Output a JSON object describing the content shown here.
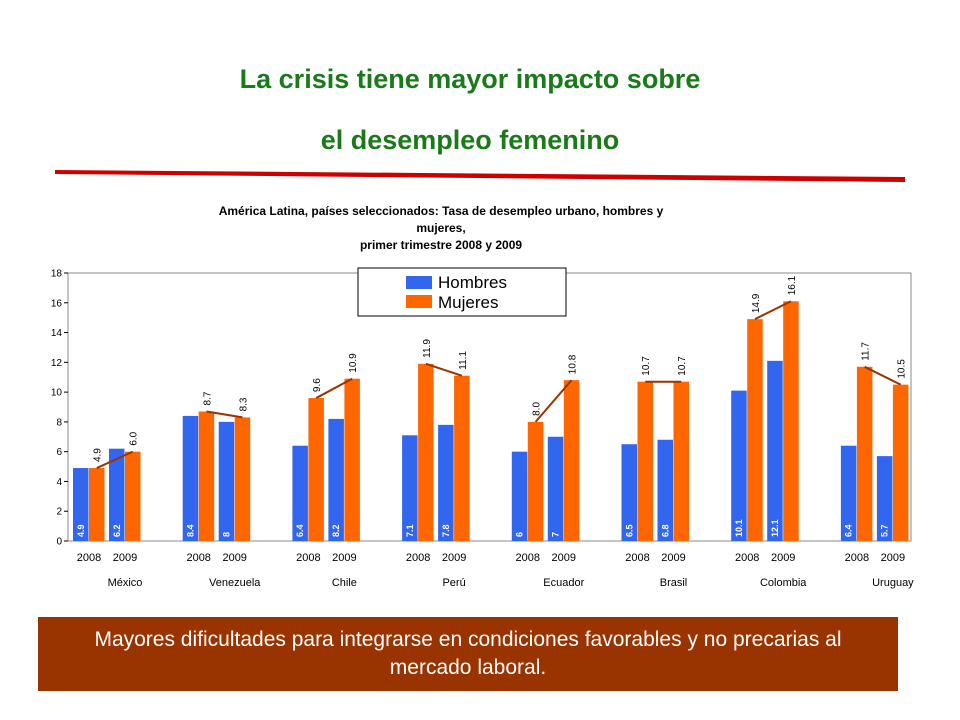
{
  "slide": {
    "title_line1": "La crisis tiene mayor impacto sobre",
    "title_line2": "el desempleo femenino",
    "caption": "Mayores dificultades para integrarse en condiciones favorables y no precarias al mercado laboral.",
    "title_color": "#1a7a1a",
    "divider_color": "#cc0000",
    "caption_bg": "#993300"
  },
  "chart_data": {
    "type": "bar",
    "title_lines": [
      "América Latina, países seleccionados: Tasa de desempleo urbano, hombres y",
      "mujeres,",
      "primer trimestre 2008 y 2009"
    ],
    "countries": [
      "México",
      "Venezuela",
      "Chile",
      "Perú",
      "Ecuador",
      "Brasil",
      "Colombia",
      "Uruguay"
    ],
    "years": [
      "2008",
      "2009"
    ],
    "series": [
      {
        "name": "Hombres",
        "color": "#3366ee",
        "values": [
          [
            4.9,
            6.2
          ],
          [
            8.4,
            8.0
          ],
          [
            6.4,
            8.2
          ],
          [
            7.1,
            7.8
          ],
          [
            6.0,
            7.0
          ],
          [
            6.5,
            6.8
          ],
          [
            10.1,
            12.1
          ],
          [
            6.4,
            5.7
          ]
        ],
        "labels": [
          [
            "4.9",
            "6.2"
          ],
          [
            "8.4",
            "8"
          ],
          [
            "6.4",
            "8.2"
          ],
          [
            "7.1",
            "7.8"
          ],
          [
            "6",
            "7"
          ],
          [
            "6.5",
            "6.8"
          ],
          [
            "10.1",
            "12.1"
          ],
          [
            "6.4",
            "5.7"
          ]
        ]
      },
      {
        "name": "Mujeres",
        "color": "#ff6600",
        "values": [
          [
            4.9,
            6.0
          ],
          [
            8.7,
            8.3
          ],
          [
            9.6,
            10.9
          ],
          [
            11.9,
            11.1
          ],
          [
            8.0,
            10.8
          ],
          [
            10.7,
            10.7
          ],
          [
            14.9,
            16.1
          ],
          [
            11.7,
            10.5
          ]
        ],
        "labels": [
          [
            "4.9",
            "6.0"
          ],
          [
            "8.7",
            "8.3"
          ],
          [
            "9.6",
            "10.9"
          ],
          [
            "11.9",
            "11.1"
          ],
          [
            "8.0",
            "10.8"
          ],
          [
            "10.7",
            "10.7"
          ],
          [
            "14.9",
            "16.1"
          ],
          [
            "11.7",
            "10.5"
          ]
        ]
      }
    ],
    "trend_line": {
      "series": "Mujeres",
      "color": "#993300"
    },
    "ylim": [
      0,
      18
    ],
    "yticks": [
      "0",
      "2",
      "4",
      "6",
      "8",
      "10",
      "12",
      "14",
      "16",
      "18"
    ],
    "grid": false,
    "legend": "top-center"
  }
}
